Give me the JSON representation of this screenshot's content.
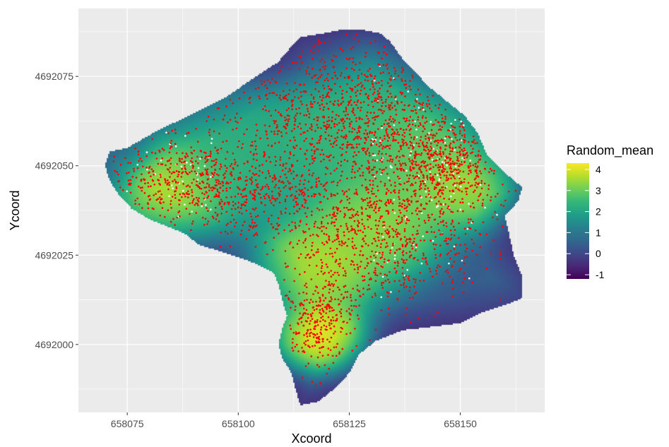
{
  "chart_data": {
    "type": "heatmap",
    "title": "",
    "xlabel": "Xcoord",
    "ylabel": "Ycoord",
    "xlim": [
      658064,
      658169
    ],
    "ylim": [
      4691981,
      4692094
    ],
    "x_ticks": [
      658075,
      658100,
      658125,
      658150
    ],
    "y_ticks": [
      4692000,
      4692025,
      4692050,
      4692075
    ],
    "x_tick_labels": [
      "658075",
      "658100",
      "658125",
      "658150"
    ],
    "y_tick_labels": [
      "4692000",
      "4692025",
      "4692050",
      "4692075"
    ],
    "grid": true,
    "panel_background": "#ebebeb",
    "grid_color": "#ffffff",
    "legend": {
      "title": "Random_mean",
      "position": "right",
      "labels": [
        "4",
        "3",
        "2",
        "1",
        "0",
        "-1"
      ],
      "values": [
        4,
        3,
        2,
        1,
        0,
        -1
      ],
      "range": [
        -1.2,
        4.3
      ],
      "colormap": "viridis"
    },
    "colors": {
      "viridis": [
        "#440154",
        "#482878",
        "#3e4989",
        "#31688e",
        "#26828e",
        "#1f9e89",
        "#35b779",
        "#6ece58",
        "#b5de2b",
        "#fde725"
      ],
      "points_observed": "#ff0000",
      "points_other": "#ffffff"
    },
    "region_outline": [
      [
        658071,
        4692054
      ],
      [
        658075,
        4692055
      ],
      [
        658082,
        4692060
      ],
      [
        658089,
        4692064
      ],
      [
        658097,
        4692069
      ],
      [
        658104,
        4692075
      ],
      [
        658109,
        4692079
      ],
      [
        658111,
        4692082
      ],
      [
        658114,
        4692086
      ],
      [
        658119,
        4692087
      ],
      [
        658123,
        4692088
      ],
      [
        658128,
        4692088
      ],
      [
        658132,
        4692087
      ],
      [
        658134,
        4692085
      ],
      [
        658137,
        4692080
      ],
      [
        658140,
        4692076
      ],
      [
        658143,
        4692072
      ],
      [
        658147,
        4692068
      ],
      [
        658151,
        4692064
      ],
      [
        658154,
        4692059
      ],
      [
        658156,
        4692053
      ],
      [
        658160,
        4692048
      ],
      [
        658164,
        4692044
      ],
      [
        658163,
        4692040
      ],
      [
        658160,
        4692036
      ],
      [
        658161,
        4692031
      ],
      [
        658162,
        4692025
      ],
      [
        658164,
        4692019
      ],
      [
        658164,
        4692013
      ],
      [
        658160,
        4692011
      ],
      [
        658155,
        4692009
      ],
      [
        658150,
        4692006
      ],
      [
        658144,
        4692005
      ],
      [
        658137,
        4692004
      ],
      [
        658131,
        4692001
      ],
      [
        658127,
        4691997
      ],
      [
        658125,
        4691992
      ],
      [
        658122,
        4691988
      ],
      [
        658118,
        4691984
      ],
      [
        658114,
        4691983
      ],
      [
        658113,
        4691987
      ],
      [
        658112,
        4691992
      ],
      [
        658110,
        4691996
      ],
      [
        658109,
        4692000
      ],
      [
        658110,
        4692005
      ],
      [
        658111,
        4692008
      ],
      [
        658110,
        4692012
      ],
      [
        658109,
        4692017
      ],
      [
        658108,
        4692020
      ],
      [
        658105,
        4692022
      ],
      [
        658101,
        4692024
      ],
      [
        658096,
        4692026
      ],
      [
        658091,
        4692028
      ],
      [
        658088,
        4692031
      ],
      [
        658084,
        4692033
      ],
      [
        658080,
        4692035
      ],
      [
        658076,
        4692038
      ],
      [
        658073,
        4692042
      ],
      [
        658071,
        4692046
      ],
      [
        658070,
        4692050
      ]
    ],
    "surface_peaks": [
      {
        "x": 658118,
        "y": 4692003,
        "value": 4.3,
        "spread": 5
      },
      {
        "x": 658084,
        "y": 4692044,
        "value": 4.0,
        "spread": 7
      },
      {
        "x": 658118,
        "y": 4692022,
        "value": 3.8,
        "spread": 7
      },
      {
        "x": 658150,
        "y": 4692045,
        "value": 3.7,
        "spread": 6
      },
      {
        "x": 658131,
        "y": 4692034,
        "value": 3.5,
        "spread": 8
      },
      {
        "x": 658141,
        "y": 4692055,
        "value": 3.0,
        "spread": 8
      },
      {
        "x": 658125,
        "y": 4692060,
        "value": 2.5,
        "spread": 10
      },
      {
        "x": 658100,
        "y": 4692052,
        "value": 2.3,
        "spread": 10
      },
      {
        "x": 658113,
        "y": 4692085,
        "value": 0.0,
        "spread": 7
      },
      {
        "x": 658162,
        "y": 4692014,
        "value": 0.3,
        "spread": 5
      },
      {
        "x": 658072,
        "y": 4692053,
        "value": 1.0,
        "spread": 5
      }
    ],
    "point_density": [
      {
        "x": 658125,
        "y": 4692065,
        "sx": 14,
        "sy": 11,
        "weight": 0.3
      },
      {
        "x": 658145,
        "y": 4692050,
        "sx": 8,
        "sy": 7,
        "weight": 0.18
      },
      {
        "x": 658090,
        "y": 4692046,
        "sx": 11,
        "sy": 7,
        "weight": 0.17
      },
      {
        "x": 658132,
        "y": 4692028,
        "sx": 12,
        "sy": 9,
        "weight": 0.2
      },
      {
        "x": 658118,
        "y": 4692006,
        "sx": 4,
        "sy": 6,
        "weight": 0.08
      },
      {
        "x": 658110,
        "y": 4692040,
        "sx": 10,
        "sy": 6,
        "weight": 0.07
      }
    ],
    "point_counts": {
      "observed": 3400,
      "other": 170
    }
  }
}
